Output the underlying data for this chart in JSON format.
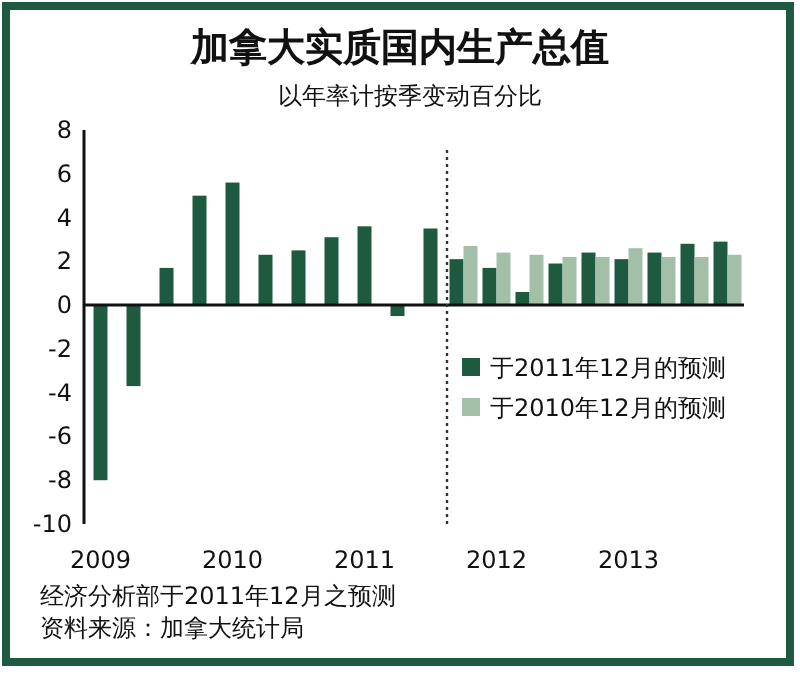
{
  "chart_data": {
    "type": "bar",
    "title": "加拿大实质国内生产总值",
    "subtitle": "以年率计按季变动百分比",
    "categories": [
      "2009",
      null,
      null,
      null,
      "2010",
      null,
      null,
      null,
      "2011",
      null,
      null,
      null,
      "2012",
      null,
      null,
      null,
      "2013",
      null,
      null,
      null
    ],
    "series": [
      {
        "name": "于2011年12月的预测",
        "color": "#1e5a40",
        "values": [
          -8.0,
          -3.7,
          1.7,
          5.0,
          5.6,
          2.3,
          2.5,
          3.1,
          3.6,
          -0.5,
          3.5,
          2.1,
          1.7,
          0.6,
          1.9,
          2.4,
          2.1,
          2.4,
          2.8,
          2.9
        ]
      },
      {
        "name": "于2010年12月的预测",
        "color": "#a3bfa8",
        "values": [
          null,
          null,
          null,
          null,
          null,
          null,
          null,
          null,
          null,
          null,
          null,
          2.7,
          2.4,
          2.3,
          2.2,
          2.2,
          2.6,
          2.2,
          2.2,
          2.3
        ]
      }
    ],
    "ylim": [
      -10,
      8
    ],
    "yticks": [
      -10,
      -8,
      -6,
      -4,
      -2,
      0,
      2,
      4,
      6,
      8
    ],
    "legend": "right",
    "annotations": [
      "经济分析部于2011年12月之预测",
      "资料来源：加拿大统计局"
    ]
  }
}
